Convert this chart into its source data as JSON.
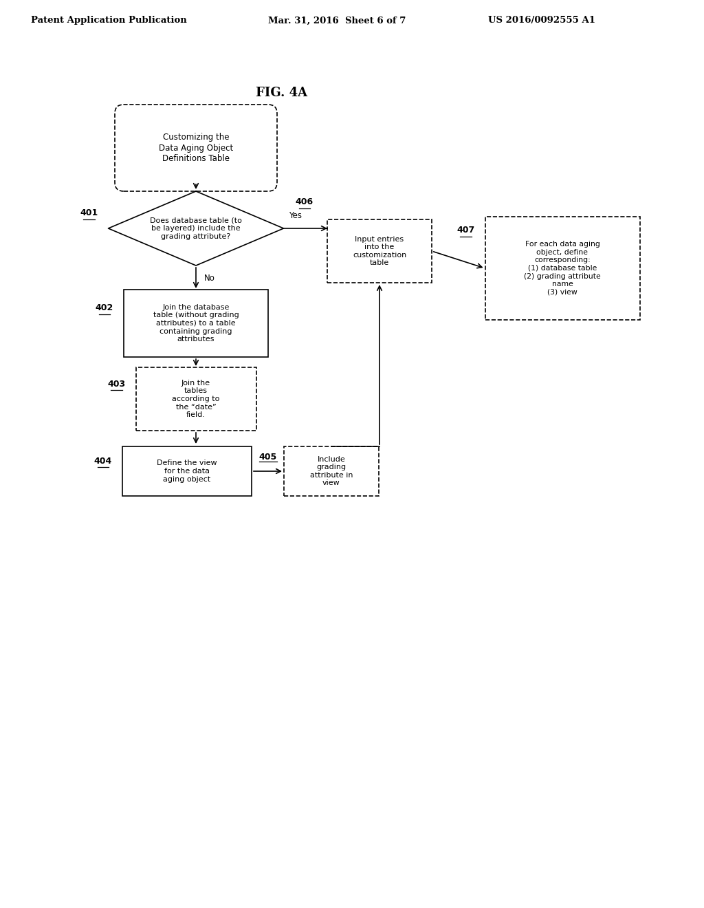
{
  "header_left": "Patent Application Publication",
  "header_center": "Mar. 31, 2016  Sheet 6 of 7",
  "header_right": "US 2016/0092555 A1",
  "title": "FIG. 4A",
  "background": "#ffffff",
  "line_color": "#000000",
  "start_text": "Customizing the\nData Aging Object\nDefinitions Table",
  "n401_text": "Does database table (to\nbe layered) include the\ngrading attribute?",
  "n402_text": "Join the database\ntable (without grading\nattributes) to a table\ncontaining grading\nattributes",
  "n403_text": "Join the\ntables\naccording to\nthe “date”\nfield.",
  "n404_text": "Define the view\nfor the data\naging object",
  "n405_text": "Include\ngrading\nattribute in\nview",
  "n406_text": "Input entries\ninto the\ncustomization\ntable",
  "n407_text": "For each data aging\nobject, define\ncorresponding:\n(1) database table\n(2) grading attribute\nname\n(3) view"
}
